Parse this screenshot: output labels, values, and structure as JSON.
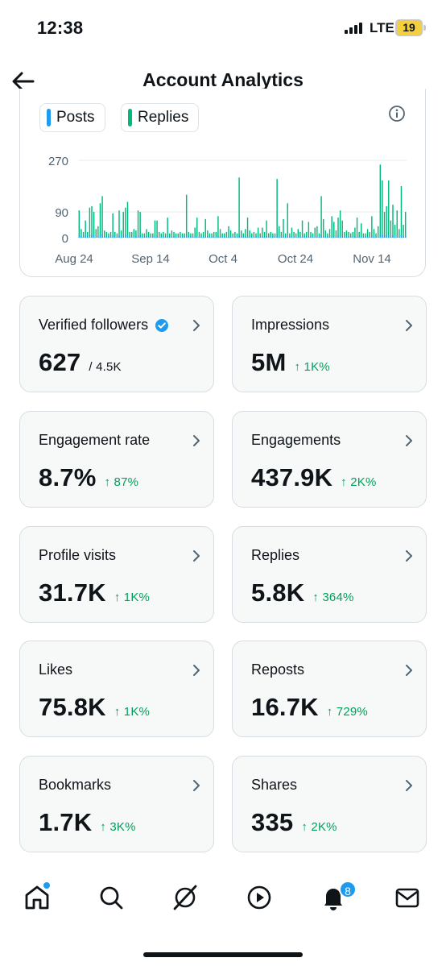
{
  "status": {
    "time": "12:38",
    "network": "LTE",
    "battery": "19"
  },
  "header": {
    "title": "Account Analytics"
  },
  "chart": {
    "legend": [
      {
        "label": "Posts",
        "color": "#1d9bf0"
      },
      {
        "label": "Replies",
        "color": "#00ba7c"
      }
    ]
  },
  "chart_data": {
    "type": "bar",
    "y_ticks": [
      "270",
      "90",
      "0"
    ],
    "x_ticks": [
      "Aug 24",
      "Sep 14",
      "Oct 4",
      "Oct 24",
      "Nov 14"
    ],
    "ylim": [
      0,
      270
    ],
    "grid": true,
    "series": [
      {
        "name": "Replies",
        "color": "#00ba7c",
        "values": [
          95,
          30,
          20,
          60,
          20,
          105,
          110,
          90,
          30,
          40,
          120,
          145,
          25,
          20,
          15,
          20,
          85,
          20,
          15,
          95,
          25,
          90,
          105,
          125,
          20,
          20,
          30,
          25,
          95,
          90,
          15,
          15,
          30,
          20,
          15,
          15,
          60,
          60,
          20,
          15,
          20,
          15,
          70,
          15,
          25,
          20,
          15,
          15,
          20,
          15,
          15,
          150,
          20,
          15,
          15,
          35,
          70,
          20,
          15,
          20,
          65,
          25,
          15,
          15,
          20,
          20,
          75,
          30,
          15,
          15,
          20,
          40,
          25,
          15,
          20,
          15,
          210,
          25,
          15,
          30,
          70,
          25,
          15,
          20,
          15,
          35,
          15,
          35,
          20,
          60,
          15,
          20,
          15,
          15,
          205,
          40,
          20,
          65,
          15,
          120,
          15,
          35,
          20,
          15,
          30,
          20,
          60,
          15,
          20,
          55,
          20,
          15,
          35,
          40,
          15,
          145,
          65,
          25,
          15,
          30,
          75,
          55,
          25,
          70,
          95,
          60,
          20,
          25,
          20,
          15,
          20,
          35,
          70,
          20,
          50,
          15,
          15,
          30,
          20,
          75,
          30,
          15,
          40,
          255,
          200,
          90,
          110,
          200,
          60,
          115,
          45,
          95,
          30,
          180,
          45,
          90
        ]
      },
      {
        "name": "Posts",
        "color": "#1d9bf0",
        "values": [
          10,
          5,
          5,
          8,
          5,
          10,
          10,
          8,
          5,
          5,
          10,
          12,
          5,
          5,
          4,
          5,
          8,
          4,
          4,
          8,
          5,
          8,
          10,
          10,
          4,
          4,
          5,
          5,
          8,
          8,
          4,
          4,
          5,
          4,
          4,
          4,
          6,
          6,
          4,
          4,
          4,
          4,
          6,
          4,
          5,
          4,
          4,
          4,
          4,
          4,
          4,
          10,
          4,
          4,
          4,
          5,
          6,
          4,
          4,
          4,
          6,
          5,
          4,
          4,
          4,
          4,
          6,
          5,
          4,
          4,
          4,
          5,
          5,
          4,
          4,
          4,
          12,
          5,
          4,
          5,
          6,
          5,
          4,
          4,
          4,
          5,
          4,
          5,
          4,
          6,
          4,
          4,
          4,
          4,
          12,
          5,
          4,
          6,
          4,
          10,
          4,
          5,
          4,
          4,
          5,
          4,
          6,
          4,
          4,
          5,
          4,
          4,
          5,
          5,
          4,
          10,
          6,
          5,
          4,
          5,
          6,
          5,
          5,
          6,
          8,
          6,
          4,
          5,
          4,
          4,
          4,
          5,
          6,
          4,
          5,
          4,
          4,
          5,
          4,
          6,
          5,
          4,
          5,
          12,
          10,
          8,
          8,
          10,
          6,
          8,
          5,
          8,
          5,
          10,
          5,
          8
        ]
      }
    ]
  },
  "stats": [
    {
      "label": "Verified followers",
      "value": "627",
      "sub": "/ 4.5K",
      "change": ""
    },
    {
      "label": "Impressions",
      "value": "5M",
      "sub": "",
      "change": "↑ 1K%"
    },
    {
      "label": "Engagement rate",
      "value": "8.7%",
      "sub": "",
      "change": "↑ 87%"
    },
    {
      "label": "Engagements",
      "value": "437.9K",
      "sub": "",
      "change": "↑ 2K%"
    },
    {
      "label": "Profile visits",
      "value": "31.7K",
      "sub": "",
      "change": "↑ 1K%"
    },
    {
      "label": "Replies",
      "value": "5.8K",
      "sub": "",
      "change": "↑ 364%"
    },
    {
      "label": "Likes",
      "value": "75.8K",
      "sub": "",
      "change": "↑ 1K%"
    },
    {
      "label": "Reposts",
      "value": "16.7K",
      "sub": "",
      "change": "↑ 729%"
    },
    {
      "label": "Bookmarks",
      "value": "1.7K",
      "sub": "",
      "change": "↑ 3K%"
    },
    {
      "label": "Shares",
      "value": "335",
      "sub": "",
      "change": "↑ 2K%"
    }
  ],
  "tabbar": {
    "notifications_count": "8"
  },
  "colors": {
    "positive": "#00a05a",
    "accent": "#1d9bf0",
    "reply_green": "#00ba7c"
  }
}
